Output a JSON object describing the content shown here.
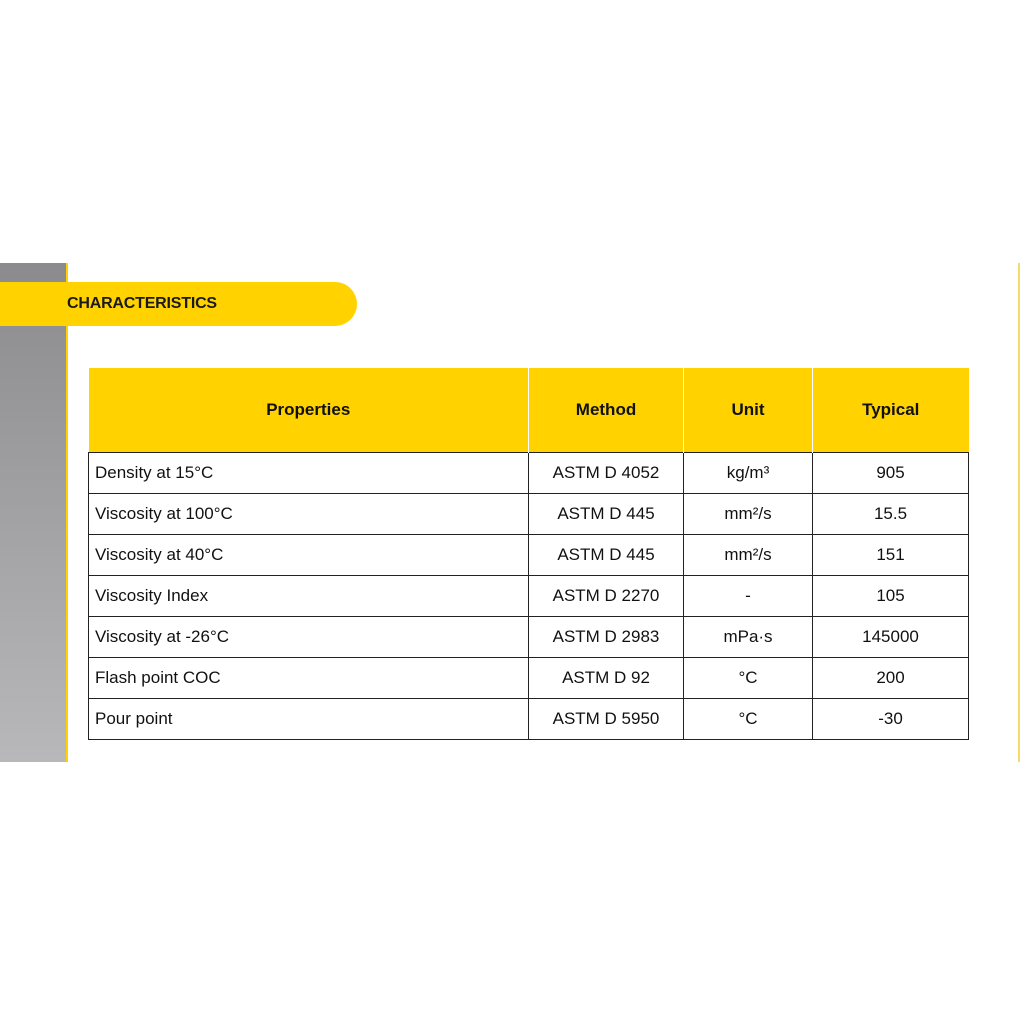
{
  "section_title": "CHARACTERISTICS",
  "colors": {
    "accent": "#FFD200",
    "sidebar": "#9A9A9C"
  },
  "table": {
    "headers": [
      "Properties",
      "Method",
      "Unit",
      "Typical"
    ],
    "rows": [
      [
        "Density at 15°C",
        "ASTM D 4052",
        "kg/m³",
        "905"
      ],
      [
        "Viscosity at 100°C",
        "ASTM D 445",
        "mm²/s",
        "15.5"
      ],
      [
        "Viscosity at 40°C",
        "ASTM D 445",
        "mm²/s",
        "151"
      ],
      [
        "Viscosity Index",
        "ASTM D 2270",
        "-",
        "105"
      ],
      [
        "Viscosity at -26°C",
        "ASTM D 2983",
        "mPa·s",
        "145000"
      ],
      [
        "Flash point COC",
        "ASTM D 92",
        "°C",
        "200"
      ],
      [
        "Pour point",
        "ASTM D 5950",
        "°C",
        "-30"
      ]
    ]
  }
}
